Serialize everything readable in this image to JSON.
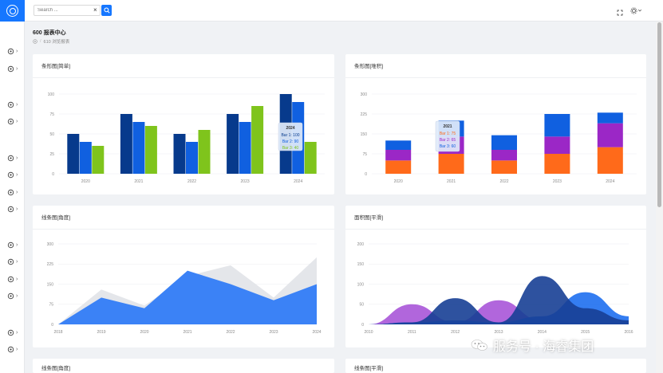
{
  "topbar": {
    "search_placeholder": "Search ...",
    "clear_symbol": "×"
  },
  "page": {
    "title": "600 报表中心",
    "breadcrumb": [
      "610 浏览报表"
    ]
  },
  "colors": {
    "primary": "#1677ff",
    "navy": "#073a8c",
    "blue": "#1060e0",
    "green": "#7fc41c",
    "orange": "#ff6a1a",
    "purple": "#9b27c6",
    "grey_area": "#e4e6ea",
    "area_blue": "#3b82f6"
  },
  "sidebar": {
    "icons": [
      "globe-icon",
      "compass-icon",
      "home-icon",
      "users-icon",
      "anchor-icon",
      "flag-icon",
      "tablet-icon",
      "activity-icon",
      "grid-icon",
      "cart-icon",
      "target-icon",
      "infinity-icon",
      "mail-icon",
      "award-icon"
    ]
  },
  "cards": {
    "bar_simple": {
      "title": "条形图[简单]"
    },
    "bar_stacked": {
      "title": "条形图[堆积]"
    },
    "line_angle": {
      "title": "线条图[角度]"
    },
    "area_smooth": {
      "title": "面积图[平滑]"
    },
    "line_angle_2": {
      "title": "线条图[角度]"
    },
    "line_smooth_2": {
      "title": "线条图[平滑]"
    }
  },
  "watermark": {
    "text": "服务号 · 海睿集团"
  },
  "chart_data": [
    {
      "type": "bar",
      "categories": [
        "2020",
        "2021",
        "2022",
        "2023",
        "2024"
      ],
      "yticks": [
        "0",
        "25",
        "50",
        "75",
        "100"
      ],
      "ylim": [
        0,
        100
      ],
      "series": [
        {
          "values": [
            50,
            75,
            50,
            75,
            100
          ],
          "color": "#073a8c"
        },
        {
          "values": [
            40,
            65,
            40,
            65,
            90
          ],
          "color": "#1060e0"
        },
        {
          "values": [
            35,
            60,
            55,
            85,
            40
          ],
          "color": "#7fc41c"
        }
      ],
      "tooltip": {
        "title": "2024",
        "lines": [
          "Bar 1: 100",
          "Bar 2: 90",
          "Bar 3: 40"
        ]
      }
    },
    {
      "type": "bar",
      "stacked": true,
      "categories": [
        "2020",
        "2021",
        "2022",
        "2023",
        "2024"
      ],
      "yticks": [
        "0",
        "75",
        "150",
        "225",
        "300"
      ],
      "ylim": [
        0,
        300
      ],
      "series": [
        {
          "values": [
            50,
            75,
            50,
            75,
            100
          ],
          "color": "#ff6a1a"
        },
        {
          "values": [
            40,
            65,
            40,
            65,
            90
          ],
          "color": "#9b27c6"
        },
        {
          "values": [
            35,
            60,
            55,
            85,
            40
          ],
          "color": "#1060e0"
        }
      ],
      "tooltip": {
        "title": "2021",
        "lines": [
          "Bar 1: 75",
          "Bar 2: 65",
          "Bar 3: 60"
        ]
      }
    },
    {
      "type": "area",
      "categories": [
        "2018",
        "2019",
        "2020",
        "2021",
        "2022",
        "2023",
        "2024"
      ],
      "yticks": [
        "0",
        "75",
        "150",
        "225",
        "300"
      ],
      "ylim": [
        0,
        300
      ],
      "series": [
        {
          "values": [
            0,
            130,
            70,
            180,
            220,
            100,
            250
          ],
          "color": "#e4e6ea"
        },
        {
          "values": [
            0,
            100,
            60,
            200,
            150,
            90,
            150
          ],
          "color": "#3b82f6"
        }
      ]
    },
    {
      "type": "area",
      "smooth": true,
      "categories": [
        "2010",
        "2011",
        "2012",
        "2013",
        "2014",
        "2015",
        "2016"
      ],
      "yticks": [
        "0",
        "50",
        "100",
        "150",
        "200"
      ],
      "ylim": [
        0,
        200
      ],
      "series": [
        {
          "values": [
            0,
            50,
            5,
            60,
            10,
            5,
            0
          ],
          "color": "#a855d8"
        },
        {
          "values": [
            0,
            5,
            10,
            5,
            20,
            80,
            20
          ],
          "color": "#1e6fef"
        },
        {
          "values": [
            0,
            5,
            65,
            5,
            120,
            40,
            10
          ],
          "color": "#173f95"
        }
      ]
    }
  ]
}
